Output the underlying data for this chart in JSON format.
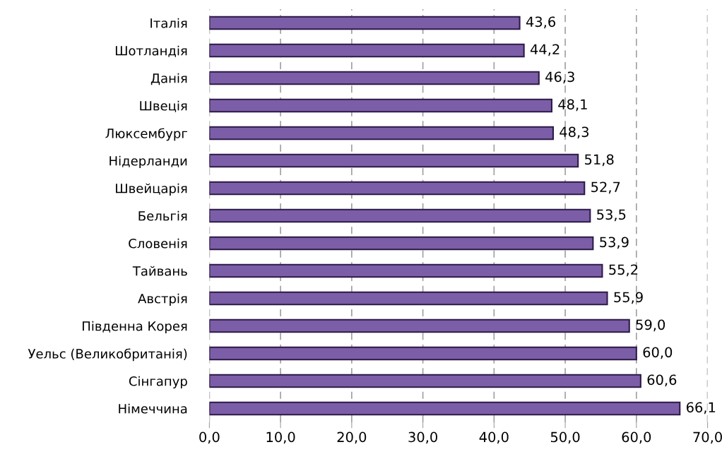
{
  "chart_data": {
    "type": "bar",
    "orientation": "horizontal",
    "categories": [
      "Італія",
      "Шотландія",
      "Данія",
      "Швеція",
      "Люксембург",
      "Нідерланди",
      "Швейцарія",
      "Бельгія",
      "Словенія",
      "Тайвань",
      "Австрія",
      "Південна Корея",
      "Уельс (Великобританія)",
      "Сінгапур",
      "Німеччина"
    ],
    "values": [
      43.6,
      44.2,
      46.3,
      48.1,
      48.3,
      51.8,
      52.7,
      53.5,
      53.9,
      55.2,
      55.9,
      59.0,
      60.0,
      60.6,
      66.1
    ],
    "value_labels": [
      "43,6",
      "44,2",
      "46,3",
      "48,1",
      "48,3",
      "51,8",
      "52,7",
      "53,5",
      "53,9",
      "55,2",
      "55,9",
      "59,0",
      "60,0",
      "60,6",
      "66,1"
    ],
    "color": "#7b5ea7",
    "xlim": [
      0,
      70
    ],
    "xticks": [
      {
        "value": 0,
        "label": "0,0"
      },
      {
        "value": 10,
        "label": "10,0"
      },
      {
        "value": 20,
        "label": "20,0"
      },
      {
        "value": 30,
        "label": "30,0"
      },
      {
        "value": 40,
        "label": "40,0"
      },
      {
        "value": 50,
        "label": "50,0"
      },
      {
        "value": 60,
        "label": "60,0"
      },
      {
        "value": 70,
        "label": "70,0"
      }
    ],
    "grid": "x"
  }
}
